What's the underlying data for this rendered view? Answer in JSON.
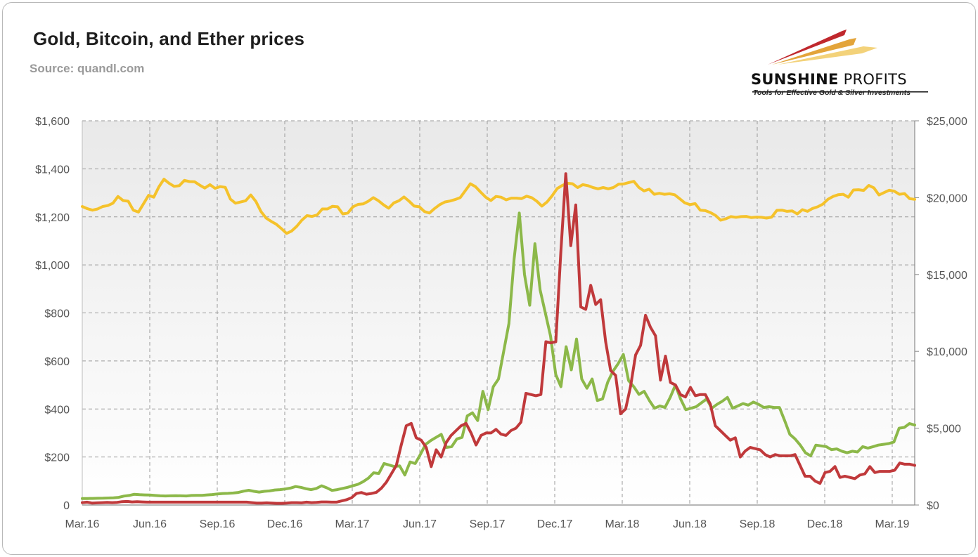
{
  "header": {
    "title": "Gold, Bitcoin, and Ether prices",
    "source": "Source: quandl.com"
  },
  "logo": {
    "name_bold": "SUNSHINE",
    "name_thin": "PROFITS",
    "tagline": "Tools for Effective Gold & Silver Investments",
    "colors": [
      "#c0282d",
      "#e3a43a",
      "#f3d27a"
    ]
  },
  "chart_data": {
    "type": "line",
    "x_start": "Mar.16",
    "x_end": "Apr.19",
    "x_ticks": [
      "Mar.16",
      "Jun.16",
      "Sep.16",
      "Dec.16",
      "Mar.17",
      "Jun.17",
      "Sep.17",
      "Dec.17",
      "Mar.18",
      "Jun.18",
      "Sep.18",
      "Dec.18",
      "Mar.19"
    ],
    "y_left": {
      "min": 0,
      "max": 1600,
      "step": 200,
      "ticks": [
        "0",
        "$200",
        "$400",
        "$600",
        "$800",
        "$1,000",
        "$1,200",
        "$1,400",
        "$1,600"
      ]
    },
    "y_right": {
      "min": 0,
      "max": 25000,
      "step": 5000,
      "ticks": [
        "$0",
        "$5,000",
        "$10,000",
        "$15,000",
        "$20,000",
        "$25,000"
      ]
    },
    "grid": true,
    "colors": {
      "gold": "#f5c22b",
      "bitcoin": "#8cb849",
      "ether": "#c0393b",
      "plot_bg_top": "#eaeaea",
      "plot_bg_bottom": "#ffffff",
      "grid": "#9a9a9a"
    },
    "series": [
      {
        "key": "gold",
        "axis": "left",
        "values": [
          1243,
          1234,
          1228,
          1233,
          1243,
          1247,
          1257,
          1285,
          1268,
          1265,
          1228,
          1220,
          1255,
          1290,
          1282,
          1325,
          1357,
          1340,
          1327,
          1330,
          1352,
          1347,
          1346,
          1332,
          1320,
          1334,
          1319,
          1326,
          1323,
          1274,
          1257,
          1262,
          1267,
          1291,
          1264,
          1222,
          1195,
          1181,
          1169,
          1151,
          1131,
          1141,
          1161,
          1186,
          1205,
          1202,
          1208,
          1233,
          1233,
          1244,
          1242,
          1212,
          1216,
          1242,
          1252,
          1254,
          1265,
          1280,
          1267,
          1250,
          1236,
          1258,
          1267,
          1283,
          1265,
          1245,
          1242,
          1222,
          1216,
          1235,
          1251,
          1262,
          1266,
          1272,
          1280,
          1309,
          1338,
          1326,
          1303,
          1282,
          1268,
          1285,
          1282,
          1271,
          1278,
          1278,
          1276,
          1286,
          1280,
          1265,
          1245,
          1262,
          1288,
          1318,
          1331,
          1340,
          1338,
          1322,
          1334,
          1330,
          1322,
          1317,
          1322,
          1317,
          1322,
          1336,
          1337,
          1343,
          1348,
          1322,
          1308,
          1315,
          1294,
          1298,
          1294,
          1296,
          1292,
          1275,
          1258,
          1251,
          1255,
          1228,
          1226,
          1218,
          1206,
          1186,
          1192,
          1201,
          1198,
          1201,
          1202,
          1197,
          1199,
          1198,
          1195,
          1199,
          1227,
          1228,
          1223,
          1225,
          1212,
          1230,
          1223,
          1235,
          1242,
          1253,
          1273,
          1285,
          1292,
          1294,
          1282,
          1312,
          1313,
          1310,
          1331,
          1321,
          1291,
          1301,
          1311,
          1307,
          1294,
          1297,
          1276,
          1273
        ]
      },
      {
        "key": "bitcoin",
        "axis": "right",
        "values": [
          420,
          425,
          430,
          440,
          445,
          455,
          470,
          500,
          580,
          620,
          700,
          670,
          660,
          650,
          620,
          600,
          590,
          600,
          610,
          600,
          590,
          620,
          625,
          630,
          660,
          680,
          720,
          750,
          760,
          780,
          820,
          900,
          960,
          890,
          840,
          890,
          920,
          980,
          1000,
          1040,
          1100,
          1200,
          1150,
          1060,
          1000,
          1080,
          1250,
          1120,
          950,
          1000,
          1080,
          1150,
          1250,
          1350,
          1520,
          1750,
          2100,
          2050,
          2700,
          2600,
          2500,
          2550,
          1950,
          2800,
          2700,
          3300,
          3950,
          4200,
          4400,
          4600,
          3750,
          3800,
          4300,
          4400,
          5800,
          6000,
          5500,
          7400,
          6200,
          7700,
          8200,
          10000,
          11800,
          16000,
          19000,
          15000,
          13000,
          17000,
          14000,
          12500,
          11000,
          8500,
          7700,
          10300,
          8800,
          10800,
          8200,
          7600,
          8200,
          6800,
          6900,
          8000,
          8700,
          9200,
          9800,
          8100,
          7700,
          7200,
          7400,
          6800,
          6300,
          6450,
          6350,
          7000,
          7800,
          6900,
          6200,
          6300,
          6400,
          6650,
          6900,
          6300,
          6550,
          6750,
          7000,
          6300,
          6450,
          6600,
          6500,
          6700,
          6550,
          6350,
          6400,
          6350,
          6350,
          5500,
          4600,
          4300,
          3900,
          3400,
          3200,
          3900,
          3850,
          3800,
          3600,
          3650,
          3500,
          3400,
          3500,
          3450,
          3800,
          3700,
          3800,
          3900,
          3950,
          4000,
          4100,
          5000,
          5050,
          5300,
          5200
        ]
      },
      {
        "key": "ether",
        "axis": "left",
        "values": [
          10,
          12,
          8,
          9,
          10,
          11,
          10,
          11,
          14,
          15,
          13,
          14,
          13,
          12,
          12,
          12,
          12,
          12,
          12,
          12,
          12,
          12,
          12,
          12,
          12,
          12,
          12,
          12,
          12,
          12,
          12,
          12,
          12,
          12,
          10,
          8,
          8,
          9,
          8,
          7,
          7,
          8,
          10,
          10,
          9,
          12,
          10,
          11,
          13,
          13,
          12,
          12,
          17,
          22,
          30,
          48,
          52,
          45,
          48,
          53,
          70,
          95,
          130,
          165,
          250,
          330,
          340,
          280,
          270,
          240,
          160,
          230,
          200,
          260,
          290,
          310,
          330,
          340,
          300,
          250,
          290,
          300,
          300,
          315,
          295,
          290,
          310,
          320,
          345,
          465,
          460,
          455,
          460,
          680,
          675,
          680,
          1050,
          1380,
          1080,
          1250,
          825,
          815,
          915,
          835,
          855,
          680,
          560,
          540,
          380,
          400,
          495,
          625,
          665,
          790,
          740,
          705,
          520,
          620,
          510,
          500,
          460,
          450,
          490,
          455,
          460,
          460,
          420,
          330,
          310,
          290,
          270,
          280,
          200,
          225,
          240,
          235,
          230,
          210,
          200,
          210,
          205,
          205,
          205,
          210,
          165,
          120,
          120,
          100,
          90,
          135,
          140,
          160,
          115,
          120,
          115,
          110,
          125,
          130,
          160,
          135,
          140,
          140,
          140,
          145,
          175,
          170,
          170,
          165
        ]
      }
    ]
  }
}
